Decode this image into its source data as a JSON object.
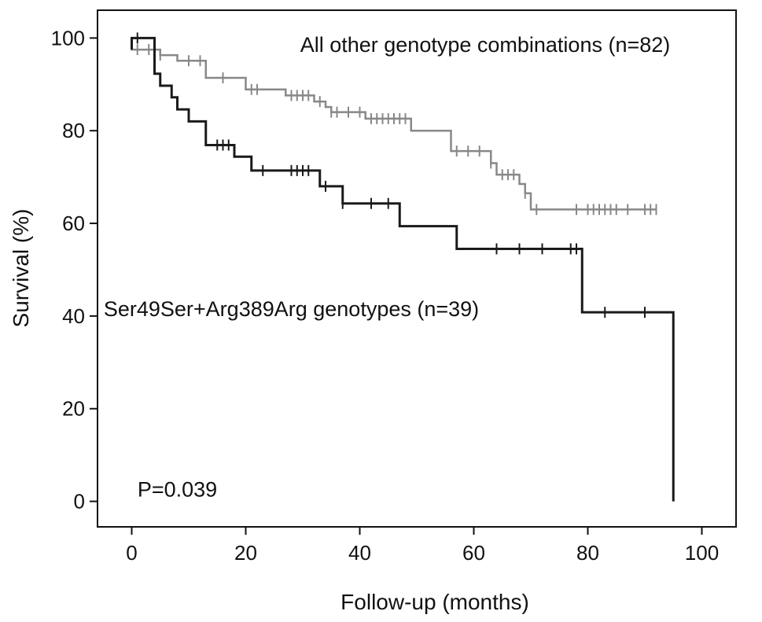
{
  "chart_data": {
    "type": "line",
    "subtype": "kaplan-meier",
    "xlabel": "Follow-up (months)",
    "ylabel": "Survival (%)",
    "xlim": [
      -6,
      106
    ],
    "ylim": [
      -5.5,
      106
    ],
    "xticks": [
      0,
      20,
      40,
      60,
      80,
      100
    ],
    "yticks": [
      0,
      20,
      40,
      60,
      80,
      100
    ],
    "grid": false,
    "legend": "inline",
    "annotations": [
      {
        "text": "All other genotype combinations (n=82)",
        "x": 62,
        "y": 97
      },
      {
        "text": "Ser49Ser+Arg389Arg genotypes (n=39)",
        "x": 28,
        "y": 40
      },
      {
        "text": "P=0.039",
        "x": 8,
        "y": 1
      }
    ],
    "series": [
      {
        "color": "#888888",
        "steps": [
          [
            0,
            100
          ],
          [
            0,
            97.5
          ],
          [
            5,
            96.3
          ],
          [
            8,
            95.1
          ],
          [
            13,
            91.4
          ],
          [
            20,
            88.9
          ],
          [
            27,
            87.6
          ],
          [
            32,
            86.3
          ],
          [
            34,
            85.1
          ],
          [
            35,
            84.0
          ],
          [
            41,
            82.6
          ],
          [
            49,
            80.0
          ],
          [
            56,
            75.6
          ],
          [
            63,
            73.0
          ],
          [
            64,
            70.5
          ],
          [
            68,
            68.5
          ],
          [
            69,
            66.5
          ],
          [
            70,
            63.0
          ],
          [
            92,
            63.0
          ]
        ],
        "censored": [
          [
            1,
            97.5
          ],
          [
            3,
            97.5
          ],
          [
            5,
            96.3
          ],
          [
            10,
            95.1
          ],
          [
            12,
            95.1
          ],
          [
            16,
            91.4
          ],
          [
            21,
            88.9
          ],
          [
            22,
            88.9
          ],
          [
            28,
            87.6
          ],
          [
            29,
            87.6
          ],
          [
            30,
            87.6
          ],
          [
            31,
            87.6
          ],
          [
            33,
            86.3
          ],
          [
            35,
            84.0
          ],
          [
            36,
            84.0
          ],
          [
            38,
            84.0
          ],
          [
            40,
            84.0
          ],
          [
            42,
            82.6
          ],
          [
            43,
            82.6
          ],
          [
            44,
            82.6
          ],
          [
            45,
            82.6
          ],
          [
            46,
            82.6
          ],
          [
            47,
            82.6
          ],
          [
            48,
            82.6
          ],
          [
            57,
            75.6
          ],
          [
            59,
            75.6
          ],
          [
            61,
            75.6
          ],
          [
            63,
            73.0
          ],
          [
            65,
            70.5
          ],
          [
            66,
            70.5
          ],
          [
            67,
            70.5
          ],
          [
            69,
            66.5
          ],
          [
            71,
            63.0
          ],
          [
            78,
            63.0
          ],
          [
            80,
            63.0
          ],
          [
            81,
            63.0
          ],
          [
            82,
            63.0
          ],
          [
            83,
            63.0
          ],
          [
            84,
            63.0
          ],
          [
            85,
            63.0
          ],
          [
            87,
            63.0
          ],
          [
            90,
            63.0
          ],
          [
            91,
            63.0
          ],
          [
            92,
            63.0
          ]
        ]
      },
      {
        "color": "#1a1a1a",
        "steps": [
          [
            0,
            100
          ],
          [
            0,
            97.5
          ],
          [
            0,
            100
          ],
          [
            4,
            92.3
          ],
          [
            5,
            89.7
          ],
          [
            7,
            87.2
          ],
          [
            8,
            84.6
          ],
          [
            10,
            82.0
          ],
          [
            13,
            76.9
          ],
          [
            18,
            74.4
          ],
          [
            21,
            71.4
          ],
          [
            33,
            68.0
          ],
          [
            37,
            64.3
          ],
          [
            47,
            59.4
          ],
          [
            57,
            54.5
          ],
          [
            79,
            40.8
          ],
          [
            95,
            40.8
          ],
          [
            95,
            0
          ]
        ],
        "censored": [
          [
            1,
            100
          ],
          [
            15,
            76.9
          ],
          [
            16,
            76.9
          ],
          [
            17,
            76.9
          ],
          [
            23,
            71.4
          ],
          [
            28,
            71.4
          ],
          [
            29,
            71.4
          ],
          [
            30,
            71.4
          ],
          [
            31,
            71.4
          ],
          [
            34,
            68.0
          ],
          [
            37,
            64.3
          ],
          [
            42,
            64.3
          ],
          [
            45,
            64.3
          ],
          [
            64,
            54.5
          ],
          [
            68,
            54.5
          ],
          [
            72,
            54.5
          ],
          [
            77,
            54.5
          ],
          [
            78,
            54.5
          ],
          [
            83,
            40.8
          ],
          [
            90,
            40.8
          ]
        ]
      }
    ]
  }
}
